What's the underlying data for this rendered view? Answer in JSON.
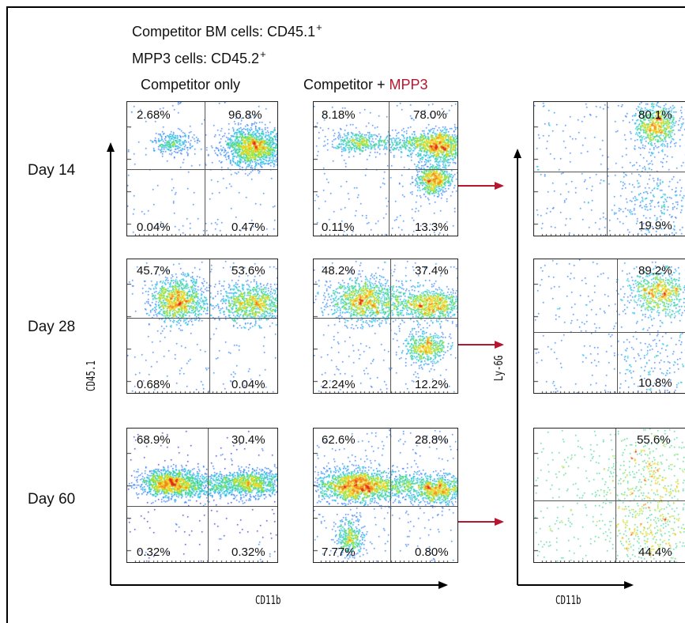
{
  "header": {
    "competitor_label": "Competitor BM cells: CD45.1",
    "competitor_sup": "+",
    "mpp3_label": "MPP3 cells: CD45.2",
    "mpp3_sup": "+",
    "col_competitor_only": "Competitor only",
    "col_competitor_plus": "Competitor + ",
    "col_mpp3_highlight": "MPP3"
  },
  "rows": [
    {
      "label": "Day 14",
      "competitor_only": {
        "ul": "2.68%",
        "ur": "96.8%",
        "ll": "0.04%",
        "lr": "0.47%"
      },
      "competitor_mpp3": {
        "ul": "8.18%",
        "ur": "78.0%",
        "ll": "0.11%",
        "lr": "13.3%"
      },
      "gated": {
        "ur": "80.1%",
        "lr": "19.9%"
      }
    },
    {
      "label": "Day 28",
      "competitor_only": {
        "ul": "45.7%",
        "ur": "53.6%",
        "ll": "0.68%",
        "lr": "0.04%"
      },
      "competitor_mpp3": {
        "ul": "48.2%",
        "ur": "37.4%",
        "ll": "2.24%",
        "lr": "12.2%"
      },
      "gated": {
        "ur": "89.2%",
        "lr": "10.8%"
      }
    },
    {
      "label": "Day 60",
      "competitor_only": {
        "ul": "68.9%",
        "ur": "30.4%",
        "ll": "0.32%",
        "lr": "0.32%"
      },
      "competitor_mpp3": {
        "ul": "62.6%",
        "ur": "28.8%",
        "ll": "7.77%",
        "lr": "0.80%"
      },
      "gated": {
        "ur": "55.6%",
        "lr": "44.4%"
      }
    }
  ],
  "axes": {
    "left_y": "CD45.1",
    "left_x": "CD11b",
    "right_y": "Ly-6G",
    "right_x": "CD11b"
  },
  "colors": {
    "arrow": "#b5172f",
    "highlight": "#b5172f",
    "axis": "#000000"
  }
}
